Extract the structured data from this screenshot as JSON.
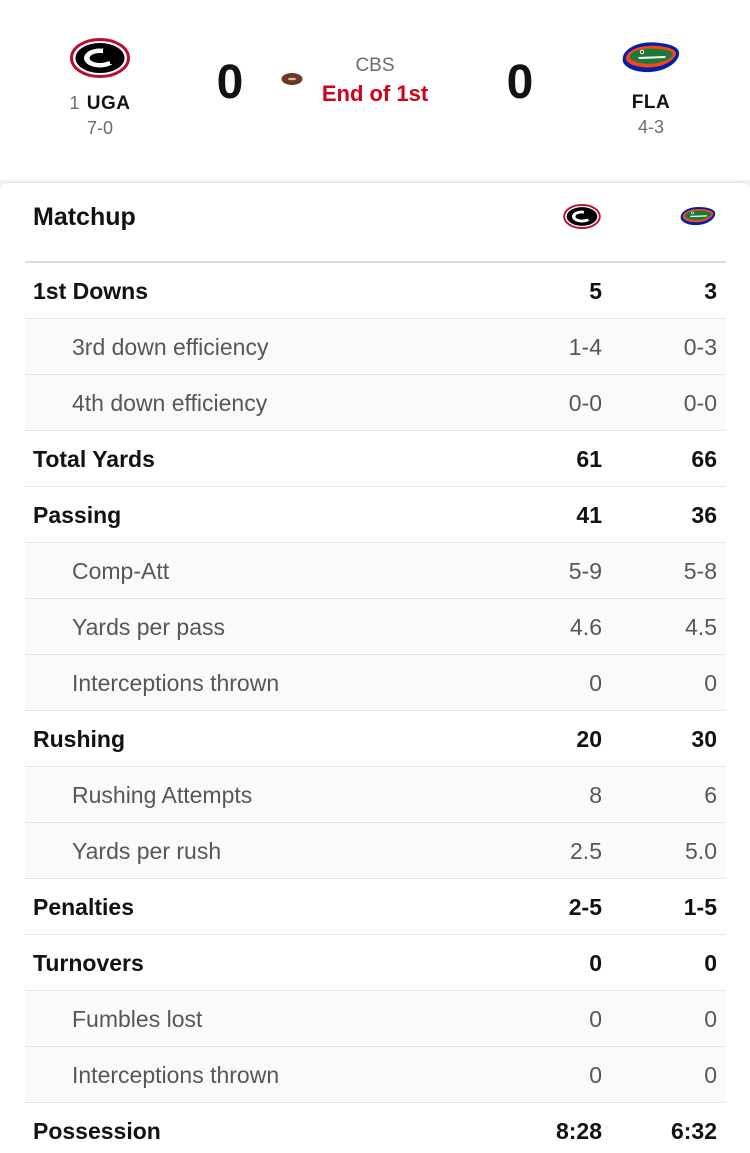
{
  "header": {
    "home": {
      "rank": "1",
      "abbr": "UGA",
      "record": "7-0",
      "score": "0",
      "logo": "georgia-g-logo"
    },
    "away": {
      "abbr": "FLA",
      "record": "4-3",
      "score": "0",
      "logo": "florida-gator-logo"
    },
    "network": "CBS",
    "period": "End of 1st",
    "possession_icon": "football-icon",
    "colors": {
      "period": "#d0021b",
      "uga_red": "#ba0c2f",
      "fla_blue": "#0021a5",
      "fla_orange": "#fa4616",
      "gator_green": "#1b7a3a"
    }
  },
  "matchup": {
    "title": "Matchup",
    "rows": [
      {
        "label": "1st Downs",
        "uga": "5",
        "fla": "3",
        "type": "main"
      },
      {
        "label": "3rd down efficiency",
        "uga": "1-4",
        "fla": "0-3",
        "type": "sub"
      },
      {
        "label": "4th down efficiency",
        "uga": "0-0",
        "fla": "0-0",
        "type": "sub"
      },
      {
        "label": "Total Yards",
        "uga": "61",
        "fla": "66",
        "type": "main"
      },
      {
        "label": "Passing",
        "uga": "41",
        "fla": "36",
        "type": "main"
      },
      {
        "label": "Comp-Att",
        "uga": "5-9",
        "fla": "5-8",
        "type": "sub"
      },
      {
        "label": "Yards per pass",
        "uga": "4.6",
        "fla": "4.5",
        "type": "sub"
      },
      {
        "label": "Interceptions thrown",
        "uga": "0",
        "fla": "0",
        "type": "sub"
      },
      {
        "label": "Rushing",
        "uga": "20",
        "fla": "30",
        "type": "main"
      },
      {
        "label": "Rushing Attempts",
        "uga": "8",
        "fla": "6",
        "type": "sub"
      },
      {
        "label": "Yards per rush",
        "uga": "2.5",
        "fla": "5.0",
        "type": "sub"
      },
      {
        "label": "Penalties",
        "uga": "2-5",
        "fla": "1-5",
        "type": "main"
      },
      {
        "label": "Turnovers",
        "uga": "0",
        "fla": "0",
        "type": "main"
      },
      {
        "label": "Fumbles lost",
        "uga": "0",
        "fla": "0",
        "type": "sub"
      },
      {
        "label": "Interceptions thrown",
        "uga": "0",
        "fla": "0",
        "type": "sub"
      },
      {
        "label": "Possession",
        "uga": "8:28",
        "fla": "6:32",
        "type": "main"
      }
    ]
  }
}
